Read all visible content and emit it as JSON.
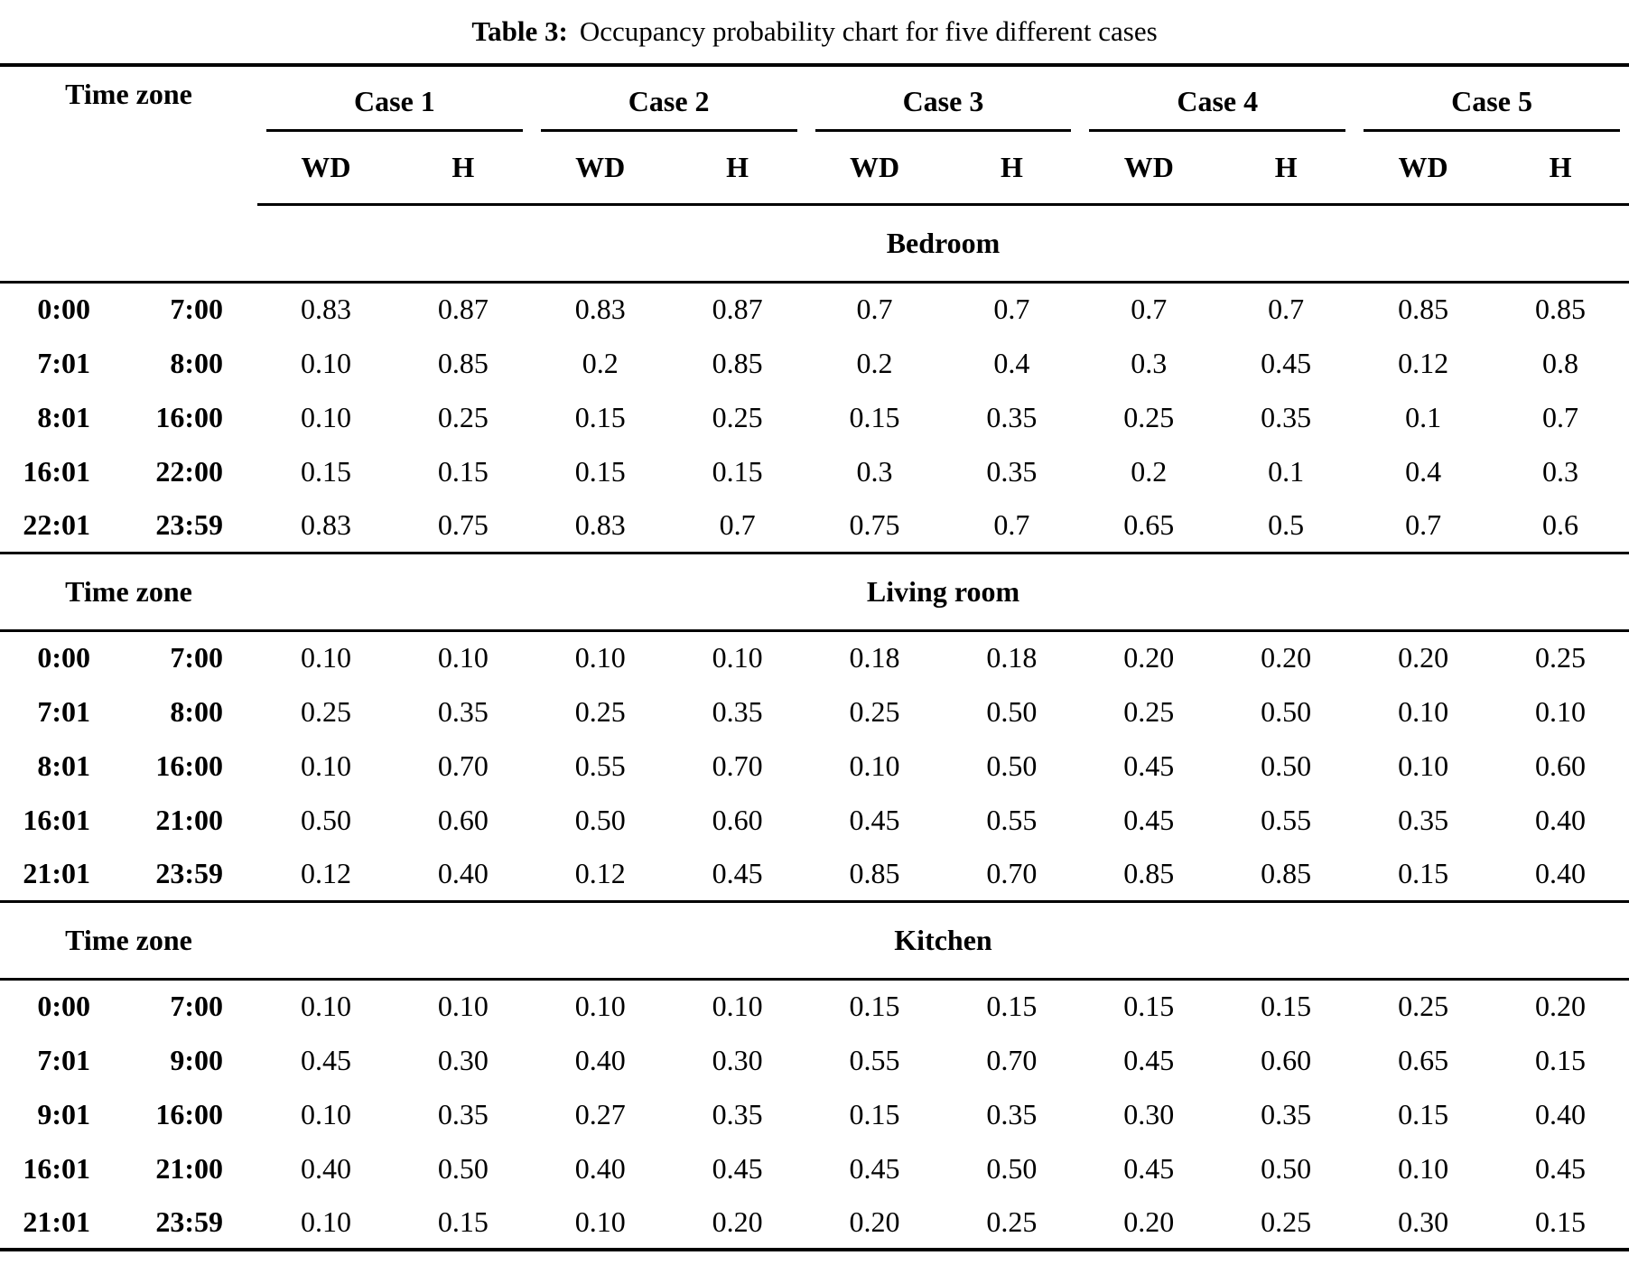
{
  "title": {
    "label": "Table 3:",
    "text": "Occupancy probability chart for five different cases"
  },
  "header": {
    "time_zone_label": "Time zone",
    "case_labels": [
      "Case 1",
      "Case 2",
      "Case 3",
      "Case 4",
      "Case 5"
    ],
    "sub_columns": [
      "WD",
      "H",
      "WD",
      "H",
      "WD",
      "H",
      "WD",
      "H",
      "WD",
      "H"
    ]
  },
  "sections": [
    {
      "label": "Bedroom",
      "time_zone_label": "",
      "rows": [
        {
          "start": "0:00",
          "end": "7:00",
          "values": [
            "0.83",
            "0.87",
            "0.83",
            "0.87",
            "0.7",
            "0.7",
            "0.7",
            "0.7",
            "0.85",
            "0.85"
          ]
        },
        {
          "start": "7:01",
          "end": "8:00",
          "values": [
            "0.10",
            "0.85",
            "0.2",
            "0.85",
            "0.2",
            "0.4",
            "0.3",
            "0.45",
            "0.12",
            "0.8"
          ]
        },
        {
          "start": "8:01",
          "end": "16:00",
          "values": [
            "0.10",
            "0.25",
            "0.15",
            "0.25",
            "0.15",
            "0.35",
            "0.25",
            "0.35",
            "0.1",
            "0.7"
          ]
        },
        {
          "start": "16:01",
          "end": "22:00",
          "values": [
            "0.15",
            "0.15",
            "0.15",
            "0.15",
            "0.3",
            "0.35",
            "0.2",
            "0.1",
            "0.4",
            "0.3"
          ]
        },
        {
          "start": "22:01",
          "end": "23:59",
          "values": [
            "0.83",
            "0.75",
            "0.83",
            "0.7",
            "0.75",
            "0.7",
            "0.65",
            "0.5",
            "0.7",
            "0.6"
          ]
        }
      ]
    },
    {
      "label": "Living room",
      "time_zone_label": "Time zone",
      "rows": [
        {
          "start": "0:00",
          "end": "7:00",
          "values": [
            "0.10",
            "0.10",
            "0.10",
            "0.10",
            "0.18",
            "0.18",
            "0.20",
            "0.20",
            "0.20",
            "0.25"
          ]
        },
        {
          "start": "7:01",
          "end": "8:00",
          "values": [
            "0.25",
            "0.35",
            "0.25",
            "0.35",
            "0.25",
            "0.50",
            "0.25",
            "0.50",
            "0.10",
            "0.10"
          ]
        },
        {
          "start": "8:01",
          "end": "16:00",
          "values": [
            "0.10",
            "0.70",
            "0.55",
            "0.70",
            "0.10",
            "0.50",
            "0.45",
            "0.50",
            "0.10",
            "0.60"
          ]
        },
        {
          "start": "16:01",
          "end": "21:00",
          "values": [
            "0.50",
            "0.60",
            "0.50",
            "0.60",
            "0.45",
            "0.55",
            "0.45",
            "0.55",
            "0.35",
            "0.40"
          ]
        },
        {
          "start": "21:01",
          "end": "23:59",
          "values": [
            "0.12",
            "0.40",
            "0.12",
            "0.45",
            "0.85",
            "0.70",
            "0.85",
            "0.85",
            "0.15",
            "0.40"
          ]
        }
      ]
    },
    {
      "label": "Kitchen",
      "time_zone_label": "Time zone",
      "rows": [
        {
          "start": "0:00",
          "end": "7:00",
          "values": [
            "0.10",
            "0.10",
            "0.10",
            "0.10",
            "0.15",
            "0.15",
            "0.15",
            "0.15",
            "0.25",
            "0.20"
          ]
        },
        {
          "start": "7:01",
          "end": "9:00",
          "values": [
            "0.45",
            "0.30",
            "0.40",
            "0.30",
            "0.55",
            "0.70",
            "0.45",
            "0.60",
            "0.65",
            "0.15"
          ]
        },
        {
          "start": "9:01",
          "end": "16:00",
          "values": [
            "0.10",
            "0.35",
            "0.27",
            "0.35",
            "0.15",
            "0.35",
            "0.30",
            "0.35",
            "0.15",
            "0.40"
          ]
        },
        {
          "start": "16:01",
          "end": "21:00",
          "values": [
            "0.40",
            "0.50",
            "0.40",
            "0.45",
            "0.45",
            "0.50",
            "0.45",
            "0.50",
            "0.10",
            "0.45"
          ]
        },
        {
          "start": "21:01",
          "end": "23:59",
          "values": [
            "0.10",
            "0.15",
            "0.10",
            "0.20",
            "0.20",
            "0.25",
            "0.20",
            "0.25",
            "0.30",
            "0.15"
          ]
        }
      ]
    }
  ]
}
